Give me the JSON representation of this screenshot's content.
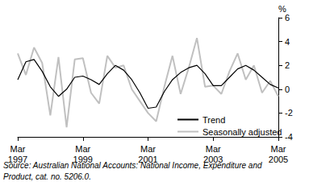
{
  "chart_data": {
    "type": "line",
    "y_label": "%",
    "source": "Source: Australian National Accounts: National Income, Expenditure and\nProduct, cat. no. 5206.0.",
    "categories": [
      "Mar\n1997",
      null,
      null,
      null,
      null,
      null,
      null,
      null,
      "Mar\n1999",
      null,
      null,
      null,
      null,
      null,
      null,
      null,
      "Mar\n2001",
      null,
      null,
      null,
      null,
      null,
      null,
      null,
      "Mar\n2003",
      null,
      null,
      null,
      null,
      null,
      null,
      null,
      "Mar\n2005"
    ],
    "series": [
      {
        "name": "Trend",
        "color": "#000000",
        "values": [
          0.8,
          2.3,
          2.5,
          1.5,
          0.2,
          -0.6,
          0.0,
          1.0,
          1.1,
          0.8,
          0.4,
          1.3,
          2.0,
          1.6,
          0.8,
          -0.3,
          -1.6,
          -1.5,
          -0.2,
          0.8,
          1.4,
          1.8,
          2.0,
          1.3,
          0.3,
          0.3,
          1.0,
          1.7,
          2.0,
          1.6,
          1.0,
          0.4,
          0.1
        ]
      },
      {
        "name": "Seasonally adjusted",
        "color": "#c0c0c0",
        "values": [
          3.0,
          1.2,
          3.5,
          2.2,
          -2.2,
          2.7,
          -3.2,
          2.5,
          2.6,
          -0.3,
          -1.2,
          2.8,
          1.8,
          2.0,
          0.0,
          -1.0,
          -2.0,
          -2.7,
          0.2,
          2.8,
          -0.4,
          1.8,
          4.3,
          0.2,
          0.3,
          -0.4,
          1.5,
          3.0,
          0.8,
          2.0,
          -0.3,
          0.7,
          -0.6
        ]
      }
    ],
    "ylim": [
      -4,
      6
    ],
    "yticks": [
      -4,
      -2,
      0,
      2,
      4,
      6
    ],
    "grid": false,
    "legend": "lower right"
  }
}
